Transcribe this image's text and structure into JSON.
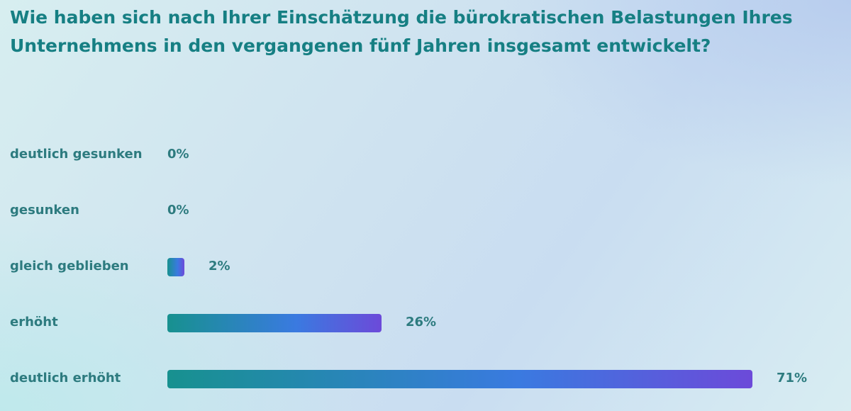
{
  "question": "Wie haben sich nach Ihrer Einschätzung die bürokratischen Belastungen Ihres Unternehmens in den vergangenen fünf Jahren insgesamt entwickelt?",
  "chart_data": {
    "type": "bar",
    "orientation": "horizontal",
    "title": "Wie haben sich nach Ihrer Einschätzung die bürokratischen Belastungen Ihres Unternehmens in den vergangenen fünf Jahren insgesamt entwickelt?",
    "categories": [
      "deutlich gesunken",
      "gesunken",
      "gleich geblieben",
      "erhöht",
      "deutlich erhöht"
    ],
    "values": [
      0,
      0,
      2,
      26,
      71
    ],
    "value_labels": [
      "0%",
      "0%",
      "2%",
      "26%",
      "71%"
    ],
    "unit": "%",
    "xlim": [
      0,
      71
    ],
    "grid": false,
    "legend": "none",
    "colors": {
      "bar_start": "#17918f",
      "bar_mid": "#3a7ae0",
      "bar_end": "#6c4ad9",
      "text": "#2d7b7f",
      "title": "#167f83"
    }
  }
}
